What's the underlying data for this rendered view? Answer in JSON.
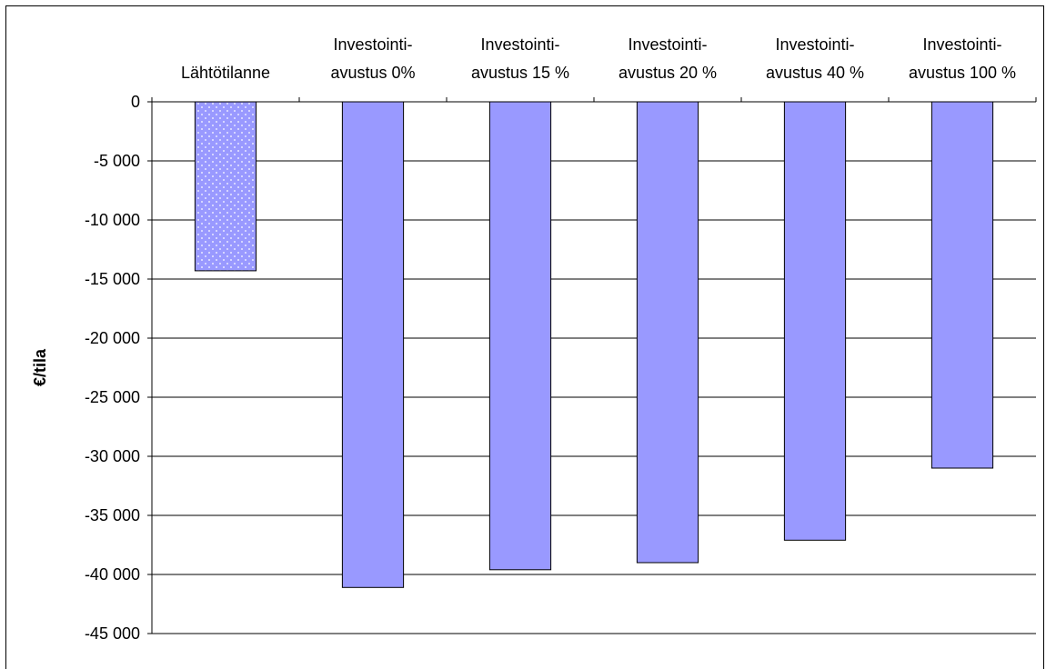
{
  "chart_data": {
    "type": "bar",
    "title": "",
    "xlabel": "",
    "ylabel": "€/tila",
    "categories": [
      [
        "",
        "Lähtötilanne"
      ],
      [
        "Investointi-",
        "avustus 0%"
      ],
      [
        "Investointi-",
        "avustus 15 %"
      ],
      [
        "Investointi-",
        "avustus 20 %"
      ],
      [
        "Investointi-",
        "avustus 40 %"
      ],
      [
        "Investointi-",
        "avustus 100 %"
      ]
    ],
    "values": [
      -14300,
      -41100,
      -39600,
      -39000,
      -37100,
      -31000
    ],
    "bar_styles": [
      "dotted",
      "solid",
      "solid",
      "solid",
      "solid",
      "solid"
    ],
    "ylim": [
      -45000,
      0
    ],
    "yticks": [
      0,
      -5000,
      -10000,
      -15000,
      -20000,
      -25000,
      -30000,
      -35000,
      -40000,
      -45000
    ],
    "ytick_labels": [
      "0",
      "-5 000",
      "-10 000",
      "-15 000",
      "-20 000",
      "-25 000",
      "-30 000",
      "-35 000",
      "-40 000",
      "-45 000"
    ],
    "grid": true,
    "legend": "none",
    "colors": {
      "bar_fill": "#9999ff",
      "bar_stroke": "#000000",
      "dot": "#ffffff",
      "grid": "#000000"
    }
  }
}
